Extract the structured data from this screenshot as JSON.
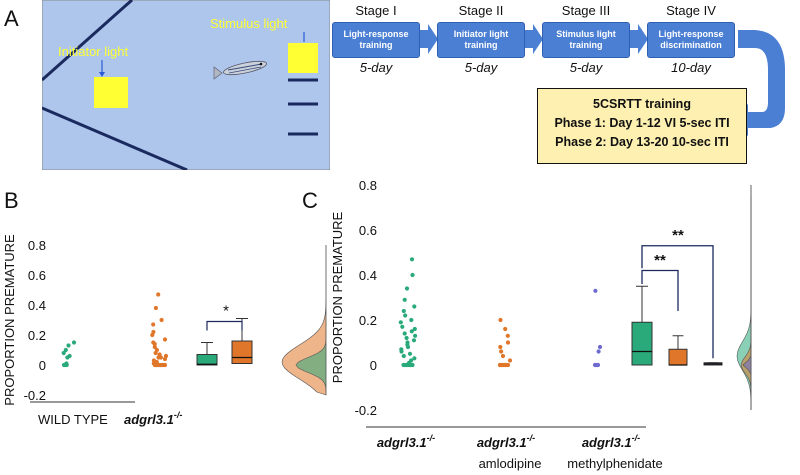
{
  "panel_a": {
    "label": "A",
    "initiator_label": "Initiator light",
    "stimulus_label": "Stimulus light",
    "stages": [
      {
        "title": "Stage I",
        "box": "Light-response training",
        "duration": "5-day"
      },
      {
        "title": "Stage II",
        "box": "Initiator light training",
        "duration": "5-day"
      },
      {
        "title": "Stage III",
        "box": "Stimulus light training",
        "duration": "5-day"
      },
      {
        "title": "Stage IV",
        "box": "Light-response discrimination",
        "duration": "10-day"
      }
    ],
    "training": {
      "title": "5CSRTT training",
      "phase1": "Phase 1: Day 1-12 VI 5-sec ITI",
      "phase2": "Phase 2: Day 13-20 10-sec ITI"
    },
    "colors": {
      "tank": "#aec6ec",
      "light": "#ffff33",
      "stage_box": "#4a7fd4",
      "training_box": "#fdf0b0"
    }
  },
  "chart_data": [
    {
      "panel": "B",
      "type": "scatter",
      "ylabel": "PROPORTION PREMATURE",
      "ylim": [
        -0.2,
        0.8
      ],
      "yticks": [
        "-0.2",
        "0",
        "0.2",
        "0.4",
        "0.6",
        "0.8"
      ],
      "groups": [
        "WILD TYPE",
        "adgrl3.1-/-"
      ],
      "series": [
        {
          "group": "WILD TYPE",
          "color": "#2aaa7a",
          "values": [
            0,
            0,
            0,
            0.01,
            0.05,
            0.06,
            0.08,
            0.1,
            0.13,
            0.15
          ]
        },
        {
          "group": "adgrl3.1-/-",
          "color": "#e0762a",
          "values": [
            0,
            0,
            0,
            0,
            0,
            0,
            0,
            0,
            0,
            0.01,
            0.02,
            0.03,
            0.04,
            0.05,
            0.05,
            0.06,
            0.07,
            0.08,
            0.1,
            0.12,
            0.14,
            0.15,
            0.17,
            0.2,
            0.22,
            0.27,
            0.3,
            0.38,
            0.47
          ]
        }
      ],
      "boxes": [
        {
          "color": "#2aaa7a",
          "min": 0,
          "q1": 0,
          "median": 0.005,
          "q3": 0.07,
          "max": 0.15
        },
        {
          "color": "#e0762a",
          "min": 0,
          "q1": 0.01,
          "median": 0.05,
          "q3": 0.16,
          "max": 0.31
        }
      ],
      "significance": "*"
    },
    {
      "panel": "C",
      "type": "scatter",
      "ylabel": "PROPORTION PREMATURE",
      "ylim": [
        -0.2,
        0.8
      ],
      "yticks": [
        "-0.2",
        "0",
        "0.2",
        "0.4",
        "0.6",
        "0.8"
      ],
      "groups": [
        "adgrl3.1-/-",
        "adgrl3.1-/- amlodipine",
        "adgrl3.1-/- methylphenidate"
      ],
      "series": [
        {
          "group": "adgrl3.1-/-",
          "color": "#2aaa7a",
          "values": [
            0,
            0,
            0,
            0,
            0,
            0,
            0,
            0.01,
            0.02,
            0.03,
            0.04,
            0.05,
            0.06,
            0.07,
            0.08,
            0.09,
            0.1,
            0.11,
            0.12,
            0.13,
            0.14,
            0.15,
            0.16,
            0.17,
            0.19,
            0.2,
            0.22,
            0.24,
            0.26,
            0.29,
            0.34,
            0.4,
            0.47
          ]
        },
        {
          "group": "adgrl3.1-/- amlodipine",
          "color": "#e0762a",
          "values": [
            0,
            0,
            0,
            0,
            0,
            0,
            0,
            0,
            0.02,
            0.04,
            0.06,
            0.08,
            0.1,
            0.13,
            0.16,
            0.2
          ]
        },
        {
          "group": "adgrl3.1-/- methylphenidate",
          "color": "#6e6ad0",
          "values": [
            0,
            0,
            0,
            0,
            0.06,
            0.08,
            0.33
          ]
        }
      ],
      "boxes": [
        {
          "color": "#2aaa7a",
          "min": 0,
          "q1": 0,
          "median": 0.06,
          "q3": 0.19,
          "max": 0.35
        },
        {
          "color": "#e0762a",
          "min": 0,
          "q1": 0,
          "median": 0,
          "q3": 0.07,
          "max": 0.13
        },
        {
          "color": "#6e6ad0",
          "min": 0,
          "q1": 0,
          "median": 0.005,
          "q3": 0.01,
          "max": 0.01
        }
      ],
      "significance": [
        "**",
        "**"
      ]
    }
  ]
}
